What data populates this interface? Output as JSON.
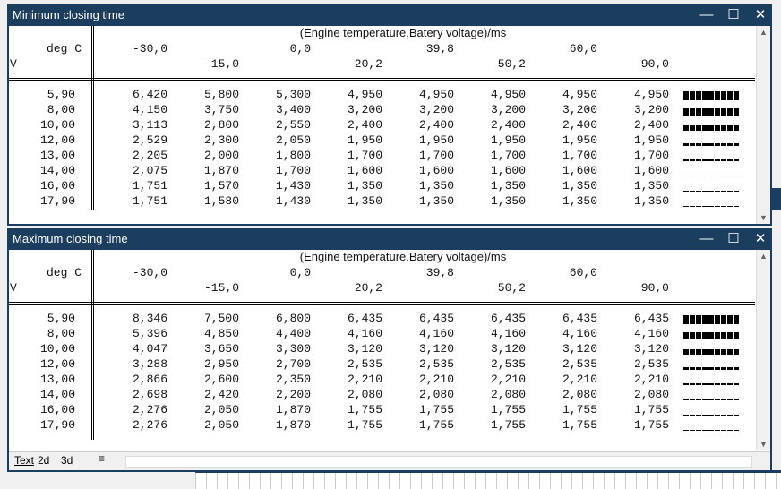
{
  "windows": [
    {
      "title": "Minimum closing time",
      "subtitle": "(Engine temperature,Batery voltage)/ms",
      "col_label": "deg C",
      "row_label": "V",
      "columns": [
        "-30,0",
        "-15,0",
        "0,0",
        "20,2",
        "39,8",
        "50,2",
        "60,0",
        "90,0"
      ],
      "rows": [
        {
          "label": "5,90",
          "values": [
            "6,420",
            "5,800",
            "5,300",
            "4,950",
            "4,950",
            "4,950",
            "4,950",
            "4,950"
          ]
        },
        {
          "label": "8,00",
          "values": [
            "4,150",
            "3,750",
            "3,400",
            "3,200",
            "3,200",
            "3,200",
            "3,200",
            "3,200"
          ]
        },
        {
          "label": "10,00",
          "values": [
            "3,113",
            "2,800",
            "2,550",
            "2,400",
            "2,400",
            "2,400",
            "2,400",
            "2,400"
          ]
        },
        {
          "label": "12,00",
          "values": [
            "2,529",
            "2,300",
            "2,050",
            "1,950",
            "1,950",
            "1,950",
            "1,950",
            "1,950"
          ]
        },
        {
          "label": "13,00",
          "values": [
            "2,205",
            "2,000",
            "1,800",
            "1,700",
            "1,700",
            "1,700",
            "1,700",
            "1,700"
          ]
        },
        {
          "label": "14,00",
          "values": [
            "2,075",
            "1,870",
            "1,700",
            "1,600",
            "1,600",
            "1,600",
            "1,600",
            "1,600"
          ]
        },
        {
          "label": "16,00",
          "values": [
            "1,751",
            "1,570",
            "1,430",
            "1,350",
            "1,350",
            "1,350",
            "1,350",
            "1,350"
          ]
        },
        {
          "label": "17,90",
          "values": [
            "1,751",
            "1,580",
            "1,430",
            "1,350",
            "1,350",
            "1,350",
            "1,350",
            "1,350"
          ]
        }
      ]
    },
    {
      "title": "Maximum closing time",
      "subtitle": "(Engine temperature,Batery voltage)/ms",
      "col_label": "deg C",
      "row_label": "V",
      "columns": [
        "-30,0",
        "-15,0",
        "0,0",
        "20,2",
        "39,8",
        "50,2",
        "60,0",
        "90,0"
      ],
      "rows": [
        {
          "label": "5,90",
          "values": [
            "8,346",
            "7,500",
            "6,800",
            "6,435",
            "6,435",
            "6,435",
            "6,435",
            "6,435"
          ]
        },
        {
          "label": "8,00",
          "values": [
            "5,396",
            "4,850",
            "4,400",
            "4,160",
            "4,160",
            "4,160",
            "4,160",
            "4,160"
          ]
        },
        {
          "label": "10,00",
          "values": [
            "4,047",
            "3,650",
            "3,300",
            "3,120",
            "3,120",
            "3,120",
            "3,120",
            "3,120"
          ]
        },
        {
          "label": "12,00",
          "values": [
            "3,288",
            "2,950",
            "2,700",
            "2,535",
            "2,535",
            "2,535",
            "2,535",
            "2,535"
          ]
        },
        {
          "label": "13,00",
          "values": [
            "2,866",
            "2,600",
            "2,350",
            "2,210",
            "2,210",
            "2,210",
            "2,210",
            "2,210"
          ]
        },
        {
          "label": "14,00",
          "values": [
            "2,698",
            "2,420",
            "2,200",
            "2,080",
            "2,080",
            "2,080",
            "2,080",
            "2,080"
          ]
        },
        {
          "label": "16,00",
          "values": [
            "2,276",
            "2,050",
            "1,870",
            "1,755",
            "1,755",
            "1,755",
            "1,755",
            "1,755"
          ]
        },
        {
          "label": "17,90",
          "values": [
            "2,276",
            "2,050",
            "1,870",
            "1,755",
            "1,755",
            "1,755",
            "1,755",
            "1,755"
          ]
        }
      ]
    }
  ],
  "tabs": [
    "Text",
    "2d",
    "3d"
  ]
}
